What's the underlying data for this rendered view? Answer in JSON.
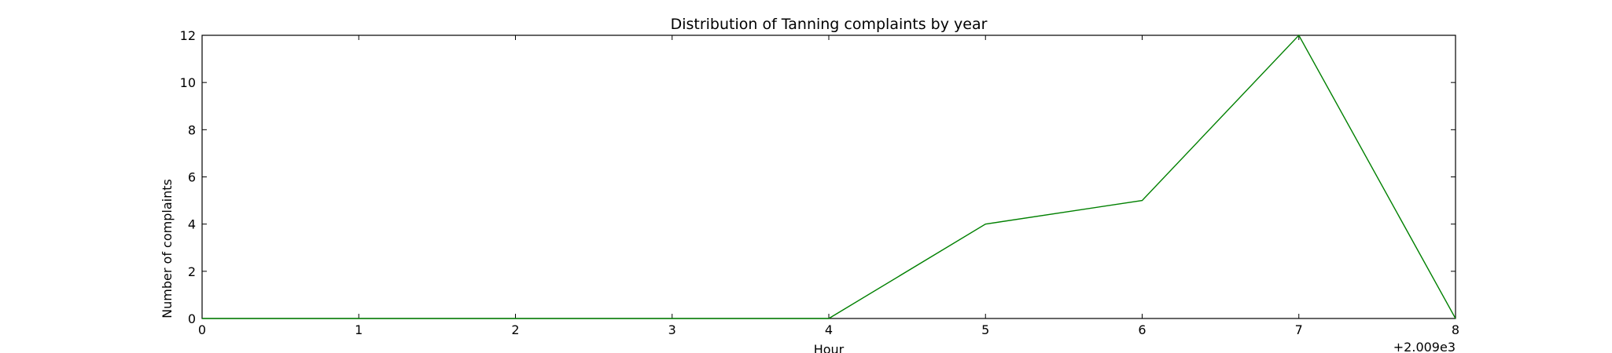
{
  "chart_data": {
    "type": "line",
    "title": "Distribution of  Tanning complaints by year",
    "xlabel": "Hour",
    "ylabel": "Number of complaints",
    "x_offset_label": "+2.009e3",
    "xlim": [
      0,
      8
    ],
    "ylim": [
      0,
      12
    ],
    "x_ticks": [
      0,
      1,
      2,
      3,
      4,
      5,
      6,
      7,
      8
    ],
    "y_ticks": [
      0,
      2,
      4,
      6,
      8,
      10,
      12
    ],
    "grid": false,
    "series": [
      {
        "color": "#008000",
        "x": [
          0,
          1,
          2,
          3,
          4,
          5,
          6,
          7,
          8
        ],
        "y": [
          0,
          0,
          0,
          0,
          0,
          4,
          5,
          12,
          0
        ]
      }
    ]
  }
}
